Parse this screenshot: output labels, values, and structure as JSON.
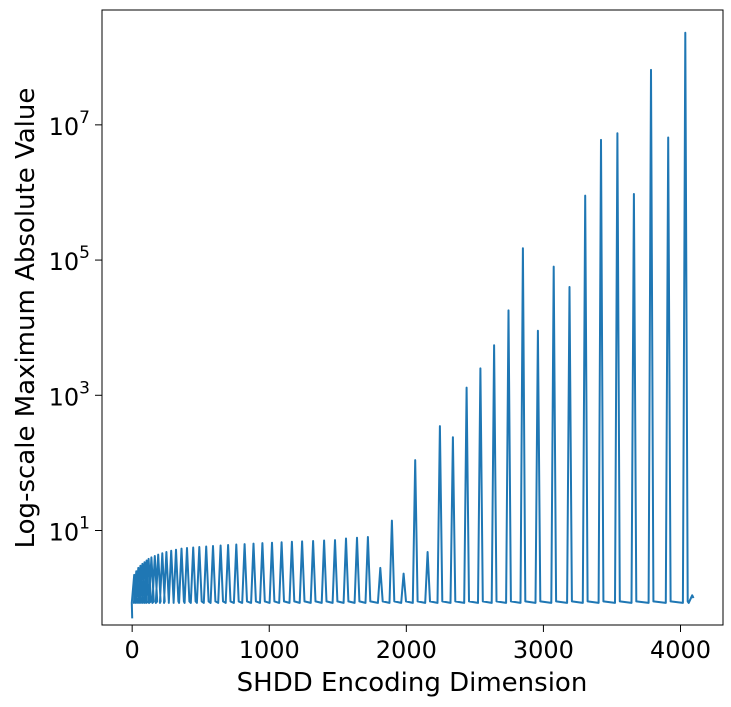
{
  "chart_data": {
    "type": "line",
    "title": "",
    "xlabel": "SHDD Encoding Dimension",
    "ylabel": "Log-scale Maximum Absolute Value",
    "xlim": [
      -220,
      4310
    ],
    "ylim": [
      0.4,
      500000000
    ],
    "yscale": "log",
    "x_ticks": [
      0,
      1000,
      2000,
      3000,
      4000
    ],
    "x_tick_labels": [
      "0",
      "1000",
      "2000",
      "3000",
      "4000"
    ],
    "y_ticks": [
      10,
      1000,
      100000,
      10000000
    ],
    "y_tick_labels": [
      {
        "base": "10",
        "exp": "1"
      },
      {
        "base": "10",
        "exp": "3"
      },
      {
        "base": "10",
        "exp": "5"
      },
      {
        "base": "10",
        "exp": "7"
      }
    ],
    "grid": false,
    "line_color": "#1f77b4",
    "series": [
      {
        "baseline": 0.85,
        "peaks": [
          {
            "x": 15,
            "y": 2.2
          },
          {
            "x": 30,
            "y": 2.5
          },
          {
            "x": 45,
            "y": 2.8
          },
          {
            "x": 60,
            "y": 3.0
          },
          {
            "x": 75,
            "y": 3.2
          },
          {
            "x": 90,
            "y": 3.4
          },
          {
            "x": 105,
            "y": 3.6
          },
          {
            "x": 120,
            "y": 3.8
          },
          {
            "x": 140,
            "y": 4.0
          },
          {
            "x": 165,
            "y": 4.2
          },
          {
            "x": 190,
            "y": 4.4
          },
          {
            "x": 220,
            "y": 4.6
          },
          {
            "x": 250,
            "y": 4.8
          },
          {
            "x": 285,
            "y": 5.0
          },
          {
            "x": 320,
            "y": 5.2
          },
          {
            "x": 360,
            "y": 5.4
          },
          {
            "x": 400,
            "y": 5.5
          },
          {
            "x": 445,
            "y": 5.6
          },
          {
            "x": 490,
            "y": 5.7
          },
          {
            "x": 540,
            "y": 5.8
          },
          {
            "x": 590,
            "y": 5.9
          },
          {
            "x": 645,
            "y": 6.0
          },
          {
            "x": 700,
            "y": 6.1
          },
          {
            "x": 760,
            "y": 6.2
          },
          {
            "x": 820,
            "y": 6.3
          },
          {
            "x": 885,
            "y": 6.4
          },
          {
            "x": 950,
            "y": 6.5
          },
          {
            "x": 1020,
            "y": 6.6
          },
          {
            "x": 1090,
            "y": 6.7
          },
          {
            "x": 1165,
            "y": 6.8
          },
          {
            "x": 1240,
            "y": 6.9
          },
          {
            "x": 1320,
            "y": 7.0
          },
          {
            "x": 1400,
            "y": 7.1
          },
          {
            "x": 1480,
            "y": 7.2
          },
          {
            "x": 1560,
            "y": 7.6
          },
          {
            "x": 1640,
            "y": 7.8
          },
          {
            "x": 1720,
            "y": 8.0
          },
          {
            "x": 1810,
            "y": 2.8
          },
          {
            "x": 1895,
            "y": 14
          },
          {
            "x": 1980,
            "y": 2.3
          },
          {
            "x": 2065,
            "y": 110
          },
          {
            "x": 2155,
            "y": 4.8
          },
          {
            "x": 2245,
            "y": 350
          },
          {
            "x": 2340,
            "y": 240
          },
          {
            "x": 2440,
            "y": 1300
          },
          {
            "x": 2540,
            "y": 2500
          },
          {
            "x": 2640,
            "y": 5500
          },
          {
            "x": 2745,
            "y": 18000
          },
          {
            "x": 2850,
            "y": 150000
          },
          {
            "x": 2960,
            "y": 9000
          },
          {
            "x": 3075,
            "y": 80000
          },
          {
            "x": 3190,
            "y": 40000
          },
          {
            "x": 3305,
            "y": 900000
          },
          {
            "x": 3420,
            "y": 6000000
          },
          {
            "x": 3540,
            "y": 7500000
          },
          {
            "x": 3660,
            "y": 950000
          },
          {
            "x": 3785,
            "y": 65000000
          },
          {
            "x": 3910,
            "y": 6500000
          },
          {
            "x": 4035,
            "y": 230000000
          }
        ]
      }
    ]
  }
}
